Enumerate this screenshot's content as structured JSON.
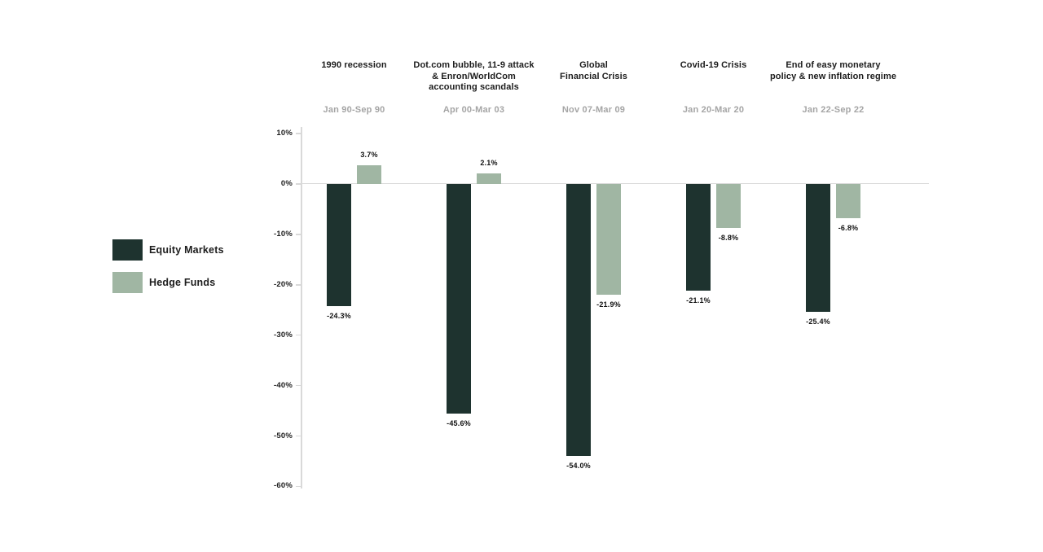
{
  "page": {
    "background": "#ffffff"
  },
  "legend": {
    "items": [
      {
        "label": "Equity Markets",
        "color": "#1e332f"
      },
      {
        "label": "Hedge Funds",
        "color": "#a0b6a3"
      }
    ]
  },
  "chart_data": {
    "type": "bar",
    "title": "",
    "categories": [
      {
        "title_lines": [
          "1990 recession"
        ],
        "period": "Jan 90-Sep 90"
      },
      {
        "title_lines": [
          "Dot.com bubble, 11-9 attack",
          "& Enron/WorldCom",
          "accounting scandals"
        ],
        "period": "Apr 00-Mar 03"
      },
      {
        "title_lines": [
          "Global",
          "Financial Crisis"
        ],
        "period": "Nov 07-Mar 09"
      },
      {
        "title_lines": [
          "Covid-19 Crisis"
        ],
        "period": "Jan 20-Mar 20"
      },
      {
        "title_lines": [
          "End of easy monetary",
          "policy & new inflation regime"
        ],
        "period": "Jan 22-Sep 22"
      }
    ],
    "series": [
      {
        "name": "Equity Markets",
        "color": "#1e332f",
        "values": [
          -24.3,
          -45.6,
          -54.0,
          -21.1,
          -25.4
        ],
        "labels": [
          "-24.3%",
          "-45.6%",
          "-54.0%",
          "-21.1%",
          "-25.4%"
        ]
      },
      {
        "name": "Hedge Funds",
        "color": "#a0b6a3",
        "values": [
          3.7,
          2.1,
          -21.9,
          -8.8,
          -6.8
        ],
        "labels": [
          "3.7%",
          "2.1%",
          "-21.9%",
          "-8.8%",
          "-6.8%"
        ]
      }
    ],
    "y_axis": {
      "min": -60,
      "max": 10,
      "tick_step": 10,
      "tick_labels": [
        "10%",
        "0%",
        "-10%",
        "-20%",
        "-30%",
        "-40%",
        "-50%",
        "-60%"
      ],
      "unit": "percent"
    },
    "grid": false,
    "legend_position": "left",
    "axis_line_color": "#d9d9d9"
  }
}
